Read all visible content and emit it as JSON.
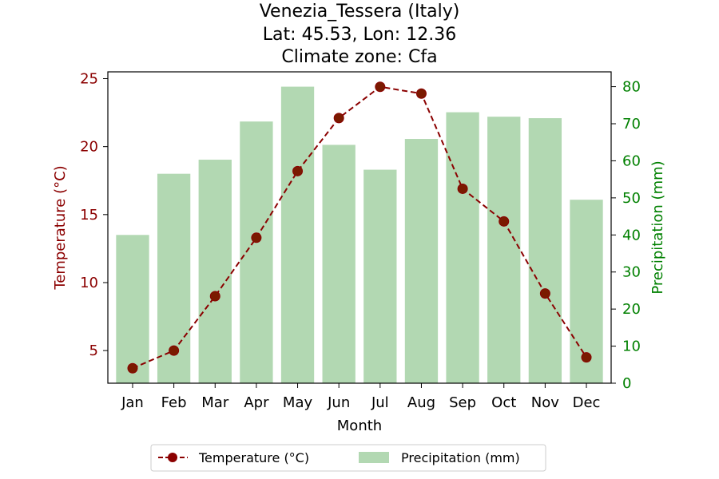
{
  "chart_data": {
    "type": "bar+line",
    "title_lines": [
      "Venezia_Tessera (Italy)",
      "Lat: 45.53, Lon: 12.36",
      "Climate zone: Cfa"
    ],
    "xlabel": "Month",
    "categories": [
      "Jan",
      "Feb",
      "Mar",
      "Apr",
      "May",
      "Jun",
      "Jul",
      "Aug",
      "Sep",
      "Oct",
      "Nov",
      "Dec"
    ],
    "series": [
      {
        "name": "Temperature (°C)",
        "type": "line",
        "axis": "left",
        "color": "#8b0000",
        "marker_fill": "#7a1a00",
        "values": [
          3.7,
          5.0,
          9.0,
          13.3,
          18.2,
          22.1,
          24.4,
          23.9,
          16.9,
          14.5,
          9.2,
          4.5
        ]
      },
      {
        "name": "Precipitation (mm)",
        "type": "bar",
        "axis": "right",
        "color": "#b2d8b2",
        "values": [
          40,
          56.5,
          60.3,
          70.6,
          80,
          64.3,
          57.6,
          65.9,
          73.1,
          71.9,
          71.5,
          49.5
        ]
      }
    ],
    "y_left": {
      "label": "Temperature (°C)",
      "color": "#8b0000",
      "ticks": [
        5,
        10,
        15,
        20,
        25
      ],
      "ylim": [
        2.6,
        25.5
      ]
    },
    "y_right": {
      "label": "Precipitation (mm)",
      "color": "#008000",
      "ticks": [
        0,
        10,
        20,
        30,
        40,
        50,
        60,
        70,
        80
      ],
      "ylim": [
        0,
        84
      ]
    },
    "grid": false,
    "legend_placement": "bottom-center"
  }
}
